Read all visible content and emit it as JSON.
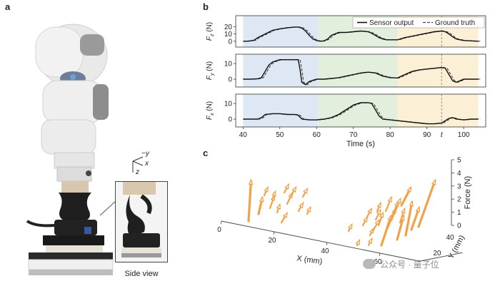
{
  "panels": {
    "a": "a",
    "b": "b",
    "c": "c"
  },
  "panel_a": {
    "axis_labels": {
      "y": "−y",
      "x": "x",
      "z": "z"
    },
    "inset_label": "Side view"
  },
  "watermark": {
    "text": "公众号 · 量子位"
  },
  "chart_data": [
    {
      "type": "line",
      "series": [
        {
          "name": "Sensor output",
          "style": "solid",
          "color": "#111111"
        },
        {
          "name": "Ground truth",
          "style": "dashed",
          "color": "#444444"
        }
      ],
      "xlabel": "Time (s)",
      "xlim": [
        38,
        106
      ],
      "xticks": [
        40,
        50,
        60,
        70,
        80,
        90,
        100
      ],
      "marker": {
        "x": 94,
        "label": "t"
      },
      "phases": [
        {
          "x0": 40,
          "x1": 60.5,
          "color": "#dde8f4"
        },
        {
          "x0": 60.5,
          "x1": 82,
          "color": "#e3efdd"
        },
        {
          "x0": 82,
          "x1": 104,
          "color": "#fbefd6"
        }
      ],
      "subplots": [
        {
          "ylabel": "F_z (N)",
          "ylabel_main": "F",
          "ylabel_sub": "z",
          "ylabel_unit": " (N)",
          "ylim": [
            -8,
            35
          ],
          "yticks": [
            0,
            10,
            20
          ],
          "points": [
            [
              40,
              0
            ],
            [
              41,
              0
            ],
            [
              42,
              0.5
            ],
            [
              43,
              1.5
            ],
            [
              44,
              5
            ],
            [
              46,
              10
            ],
            [
              48,
              15
            ],
            [
              50,
              17
            ],
            [
              52,
              18.5
            ],
            [
              54,
              19.5
            ],
            [
              55,
              19.5
            ],
            [
              56,
              18
            ],
            [
              57,
              14
            ],
            [
              58,
              8
            ],
            [
              59,
              3
            ],
            [
              60,
              1
            ],
            [
              61,
              0
            ],
            [
              62,
              0.5
            ],
            [
              63,
              3
            ],
            [
              64,
              8
            ],
            [
              66,
              12
            ],
            [
              68,
              12
            ],
            [
              70,
              13
            ],
            [
              72,
              14
            ],
            [
              74,
              13
            ],
            [
              75,
              11
            ],
            [
              76,
              8
            ],
            [
              77,
              5
            ],
            [
              78,
              3
            ],
            [
              79,
              2
            ],
            [
              80,
              2
            ],
            [
              82,
              2
            ],
            [
              84,
              5
            ],
            [
              86,
              7
            ],
            [
              88,
              9
            ],
            [
              90,
              11
            ],
            [
              92,
              13
            ],
            [
              94,
              14
            ],
            [
              95,
              13
            ],
            [
              96,
              10
            ],
            [
              97,
              6
            ],
            [
              98,
              3
            ],
            [
              100,
              1
            ],
            [
              102,
              0.5
            ],
            [
              104,
              0
            ]
          ]
        },
        {
          "ylabel": "F_y (N)",
          "ylabel_main": "F",
          "ylabel_sub": "y",
          "ylabel_unit": " (N)",
          "ylim": [
            -5,
            16
          ],
          "yticks": [
            0,
            10
          ],
          "points": [
            [
              40,
              0
            ],
            [
              42,
              0
            ],
            [
              44,
              0.3
            ],
            [
              45,
              1
            ],
            [
              46,
              5
            ],
            [
              47,
              9
            ],
            [
              48,
              11
            ],
            [
              50,
              12.5
            ],
            [
              52,
              12.5
            ],
            [
              54,
              12.5
            ],
            [
              55,
              12.5
            ],
            [
              55.5,
              6
            ],
            [
              56,
              -2
            ],
            [
              57,
              -3.5
            ],
            [
              58,
              -1.5
            ],
            [
              60,
              0
            ],
            [
              62,
              0
            ],
            [
              64,
              0.5
            ],
            [
              66,
              1
            ],
            [
              68,
              2
            ],
            [
              70,
              3
            ],
            [
              72,
              4
            ],
            [
              74,
              4.5
            ],
            [
              76,
              4
            ],
            [
              78,
              2
            ],
            [
              80,
              1
            ],
            [
              82,
              0.8
            ],
            [
              84,
              3
            ],
            [
              86,
              5
            ],
            [
              88,
              6
            ],
            [
              90,
              6.5
            ],
            [
              92,
              7
            ],
            [
              94,
              7.5
            ],
            [
              95,
              7
            ],
            [
              96,
              3
            ],
            [
              97,
              -1
            ],
            [
              98,
              -2
            ],
            [
              99,
              -1
            ],
            [
              100,
              0
            ],
            [
              104,
              0
            ]
          ]
        },
        {
          "ylabel": "F_x (N)",
          "ylabel_main": "F",
          "ylabel_sub": "x",
          "ylabel_unit": " (N)",
          "ylim": [
            -5,
            16
          ],
          "yticks": [
            0,
            10
          ],
          "points": [
            [
              40,
              0
            ],
            [
              44,
              0
            ],
            [
              45,
              1
            ],
            [
              46,
              3
            ],
            [
              48,
              3.5
            ],
            [
              50,
              3.5
            ],
            [
              52,
              3
            ],
            [
              54,
              3
            ],
            [
              55,
              2.5
            ],
            [
              56,
              0
            ],
            [
              58,
              -0.5
            ],
            [
              60,
              -0.5
            ],
            [
              62,
              0
            ],
            [
              64,
              1
            ],
            [
              66,
              3
            ],
            [
              68,
              6
            ],
            [
              70,
              9
            ],
            [
              72,
              10.5
            ],
            [
              74,
              10.5
            ],
            [
              75,
              10
            ],
            [
              76,
              6
            ],
            [
              77,
              2
            ],
            [
              78,
              0
            ],
            [
              80,
              -0.5
            ],
            [
              82,
              -1
            ],
            [
              84,
              -1.5
            ],
            [
              86,
              -2
            ],
            [
              88,
              -2.5
            ],
            [
              90,
              -3
            ],
            [
              92,
              -3
            ],
            [
              94,
              -2.5
            ],
            [
              95,
              -1
            ],
            [
              96,
              0.5
            ],
            [
              97,
              1
            ],
            [
              98,
              0
            ],
            [
              100,
              -0.5
            ],
            [
              102,
              0
            ],
            [
              104,
              0
            ]
          ]
        }
      ]
    },
    {
      "type": "scatter",
      "subtype": "3d-quiver",
      "xlabel": "X (mm)",
      "ylabel": "Y (mm)",
      "zlabel": "Force (N)",
      "xticks": [
        0,
        20,
        40,
        60
      ],
      "yticks": [
        20,
        40
      ],
      "zticks": [
        0,
        1,
        2,
        3,
        4,
        5
      ],
      "color": "#f0a14a",
      "arrow_count": 34
    }
  ]
}
